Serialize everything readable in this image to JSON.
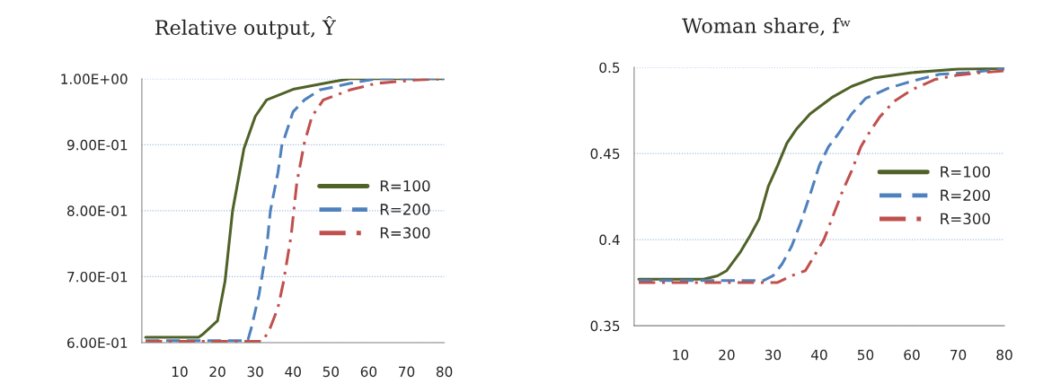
{
  "chart_data": [
    {
      "type": "line",
      "title": "Relative output, Ŷ",
      "xlim": [
        0,
        80
      ],
      "xticks": [
        10,
        20,
        30,
        40,
        50,
        60,
        70,
        80
      ],
      "ylim": [
        0.6,
        1.0
      ],
      "yticks": [
        {
          "value": 0.6,
          "label": "6.00E-01"
        },
        {
          "value": 0.7,
          "label": "7.00E-01"
        },
        {
          "value": 0.8,
          "label": "8.00E-01"
        },
        {
          "value": 0.9,
          "label": "9.00E-01"
        },
        {
          "value": 1.0,
          "label": "1.00E+00"
        }
      ],
      "grid": "y",
      "legend": "right",
      "marker": "none",
      "series": [
        {
          "name": "R=100",
          "color": "#4f6228",
          "line_style": "solid",
          "x": [
            1,
            15,
            16,
            20,
            22,
            24,
            27,
            30,
            33,
            40,
            50,
            55,
            80
          ],
          "values": [
            0.608,
            0.608,
            0.612,
            0.633,
            0.693,
            0.8,
            0.894,
            0.943,
            0.968,
            0.984,
            0.995,
            1.0,
            1.0
          ]
        },
        {
          "name": "R=200",
          "color": "#4f81bd",
          "line_style": "dashed",
          "x": [
            1,
            28,
            29,
            31,
            33,
            34,
            36,
            37,
            40,
            43,
            47,
            55,
            62,
            80
          ],
          "values": [
            0.603,
            0.603,
            0.623,
            0.673,
            0.743,
            0.8,
            0.858,
            0.898,
            0.95,
            0.968,
            0.983,
            0.993,
            1.0,
            1.0
          ]
        },
        {
          "name": "R=300",
          "color": "#c0504d",
          "line_style": "dashdot",
          "x": [
            1,
            32,
            34,
            36,
            37.5,
            39.5,
            41,
            43,
            45,
            48,
            55,
            62,
            72,
            80
          ],
          "values": [
            0.602,
            0.602,
            0.623,
            0.653,
            0.693,
            0.763,
            0.843,
            0.903,
            0.943,
            0.968,
            0.983,
            0.993,
            0.998,
            1.0
          ]
        }
      ]
    },
    {
      "type": "line",
      "title": "Woman share, fʷ",
      "xlim": [
        0,
        80
      ],
      "xticks": [
        10,
        20,
        30,
        40,
        50,
        60,
        70,
        80
      ],
      "ylim": [
        0.35,
        0.5
      ],
      "yticks": [
        0.35,
        0.4,
        0.45,
        0.5
      ],
      "grid": "y",
      "legend": "right",
      "marker": "none",
      "series": [
        {
          "name": "R=100",
          "color": "#4f6228",
          "line_style": "solid",
          "x": [
            1,
            15,
            18,
            20,
            23,
            25,
            27,
            29,
            31,
            33,
            35,
            38,
            40,
            43,
            47,
            52,
            60,
            70,
            80
          ],
          "values": [
            0.377,
            0.377,
            0.379,
            0.382,
            0.393,
            0.402,
            0.412,
            0.431,
            0.443,
            0.456,
            0.464,
            0.473,
            0.477,
            0.483,
            0.489,
            0.494,
            0.497,
            0.499,
            0.4995
          ]
        },
        {
          "name": "R=200",
          "color": "#4f81bd",
          "line_style": "dashed",
          "x": [
            1,
            28,
            30,
            32,
            34,
            36,
            38,
            40,
            42,
            44,
            47,
            50,
            55,
            60,
            66,
            72,
            80
          ],
          "values": [
            0.3763,
            0.3763,
            0.379,
            0.386,
            0.396,
            0.41,
            0.426,
            0.443,
            0.454,
            0.461,
            0.473,
            0.482,
            0.488,
            0.492,
            0.496,
            0.497,
            0.499
          ]
        },
        {
          "name": "R=300",
          "color": "#c0504d",
          "line_style": "dashdot",
          "x": [
            1,
            31,
            34,
            37,
            39,
            41,
            43,
            45,
            47,
            49,
            51,
            53,
            56,
            60,
            65,
            70,
            75,
            80
          ],
          "values": [
            0.3751,
            0.3751,
            0.379,
            0.382,
            0.391,
            0.4,
            0.414,
            0.428,
            0.44,
            0.454,
            0.463,
            0.471,
            0.48,
            0.487,
            0.493,
            0.4956,
            0.497,
            0.498
          ]
        }
      ]
    }
  ]
}
